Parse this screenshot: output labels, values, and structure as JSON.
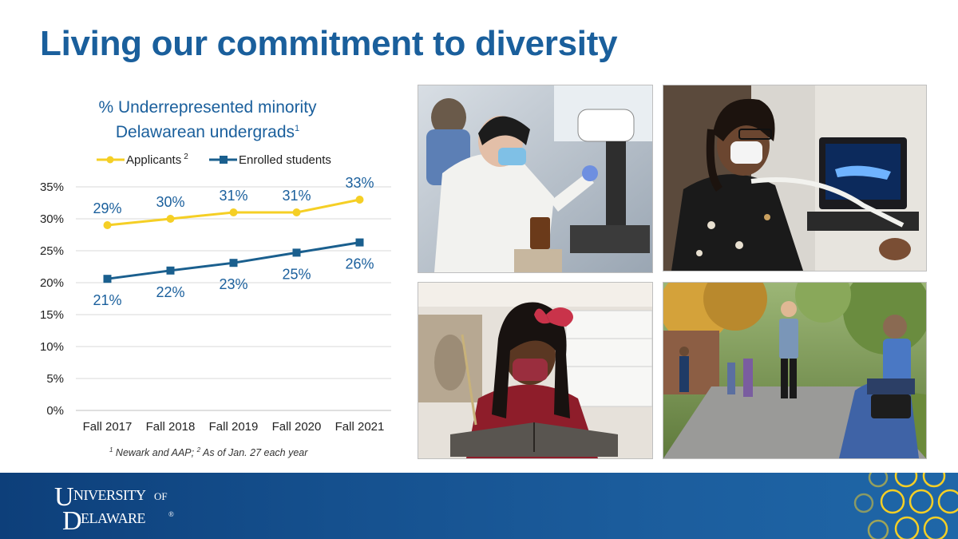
{
  "slide": {
    "title": "Living our commitment to diversity",
    "footnote_1_mark": "1",
    "footnote_1_text": " Newark and AAP; ",
    "footnote_2_mark": "2",
    "footnote_2_text": " As of Jan. 27 each year"
  },
  "chart_data": {
    "type": "line",
    "title_line1": "% Underrepresented minority",
    "title_line2": "Delawarean undergrads",
    "title_footnote": "1",
    "categories": [
      "Fall 2017",
      "Fall 2018",
      "Fall 2019",
      "Fall 2020",
      "Fall 2021"
    ],
    "series": [
      {
        "name": "Applicants",
        "footnote": "2",
        "marker": "circle",
        "color": "#f5cf25",
        "values": [
          29,
          30,
          31,
          31,
          33
        ],
        "labels": [
          "29%",
          "30%",
          "31%",
          "31%",
          "33%"
        ],
        "label_position": "above"
      },
      {
        "name": "Enrolled students",
        "marker": "square",
        "color": "#1a5f8e",
        "values": [
          20.6,
          21.9,
          23.1,
          24.7,
          26.3
        ],
        "labels": [
          "21%",
          "22%",
          "23%",
          "25%",
          "26%"
        ],
        "label_position": "below"
      }
    ],
    "yticks": [
      "0%",
      "5%",
      "10%",
      "15%",
      "20%",
      "25%",
      "30%",
      "35%"
    ],
    "ylim": [
      0,
      35
    ],
    "ystep": 5,
    "grid": true,
    "legend_position": "top"
  },
  "photos": {
    "lab": "lab-scientist-microscope-photo",
    "ultrasound": "ultrasound-technician-photo",
    "archive": "student-reading-old-book-photo",
    "campus": "students-outdoors-campus-photo"
  },
  "footer": {
    "logo_line1_big": "U",
    "logo_line1_small": "NIVERSITY",
    "logo_line1_of": "OF",
    "logo_line2_big": "D",
    "logo_line2_small": "ELAWARE",
    "logo_mark": "®",
    "accent_color": "#f5cf25",
    "band_color": "#15508e"
  }
}
